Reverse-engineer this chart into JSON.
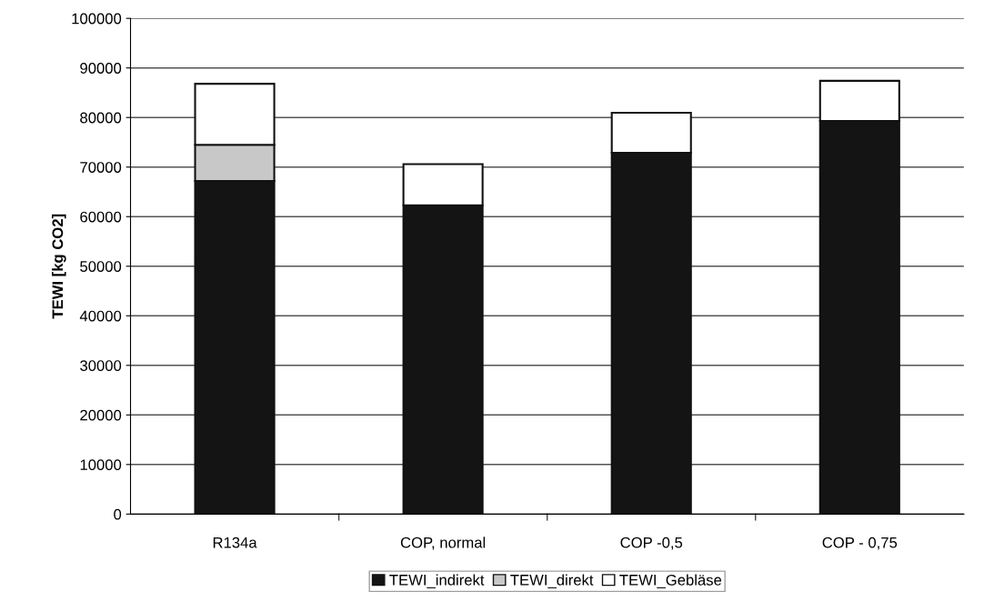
{
  "chart_data": {
    "type": "bar",
    "stacked": true,
    "ylabel": "TEWI [kg CO2]",
    "categories": [
      "R134a",
      "COP, normal",
      "COP -0,5",
      "COP - 0,75"
    ],
    "series": [
      {
        "name": "TEWI_indirekt",
        "color": "#141414",
        "values": [
          67200,
          62300,
          72900,
          79300
        ]
      },
      {
        "name": "TEWI_direkt",
        "color": "#c8c8c8",
        "values": [
          7300,
          0,
          0,
          0
        ]
      },
      {
        "name": "TEWI_Gebläse",
        "color": "#ffffff",
        "values": [
          12300,
          8300,
          8050,
          8100
        ]
      }
    ],
    "ylim": [
      0,
      100000
    ],
    "yticks": [
      0,
      10000,
      20000,
      30000,
      40000,
      50000,
      60000,
      70000,
      80000,
      90000,
      100000
    ],
    "grid": "y",
    "legend": "bottom"
  }
}
